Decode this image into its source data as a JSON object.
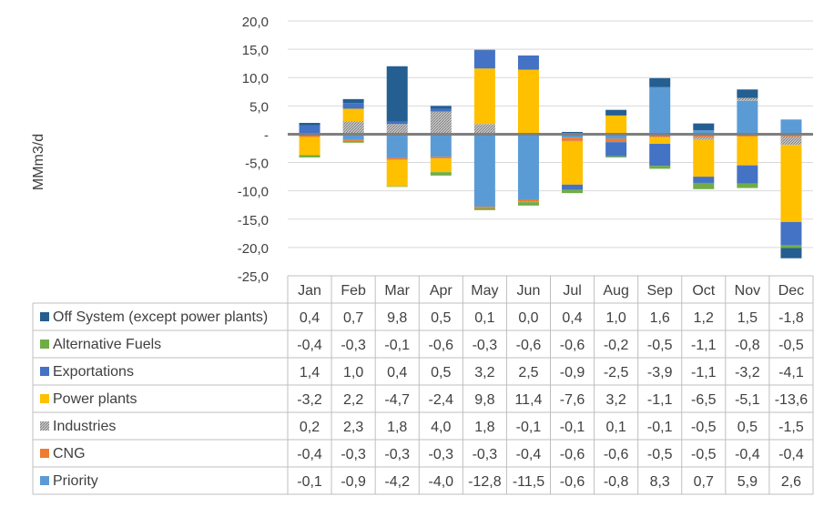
{
  "chart_data": {
    "type": "bar",
    "stacked": true,
    "ylabel": "MMm3/d",
    "ylim": [
      -25,
      20
    ],
    "yticks": [
      20,
      15,
      10,
      5,
      0,
      -5,
      -10,
      -15,
      -20,
      -25
    ],
    "ytick_labels": [
      "20,0",
      "15,0",
      "10,0",
      "5,0",
      "-",
      "-5,0",
      "-10,0",
      "-15,0",
      "-20,0",
      "-25,0"
    ],
    "grid": true,
    "legend": "data-table-below",
    "categories": [
      "Jan",
      "Feb",
      "Mar",
      "Apr",
      "May",
      "Jun",
      "Jul",
      "Aug",
      "Sep",
      "Oct",
      "Nov",
      "Dec"
    ],
    "series": [
      {
        "name": "Priority",
        "color": "#5b9bd5",
        "values": [
          -0.1,
          -0.9,
          -4.2,
          -4.0,
          -12.8,
          -11.5,
          -0.6,
          -0.8,
          8.3,
          0.7,
          5.9,
          2.6
        ],
        "labels": [
          "-0,1",
          "-0,9",
          "-4,2",
          "-4,0",
          "-12,8",
          "-11,5",
          "-0,6",
          "-0,8",
          "8,3",
          "0,7",
          "5,9",
          "2,6"
        ]
      },
      {
        "name": "CNG",
        "color": "#ed7d31",
        "values": [
          -0.4,
          -0.3,
          -0.3,
          -0.3,
          -0.3,
          -0.4,
          -0.6,
          -0.6,
          -0.5,
          -0.5,
          -0.4,
          -0.4
        ],
        "labels": [
          "-0,4",
          "-0,3",
          "-0,3",
          "-0,3",
          "-0,3",
          "-0,4",
          "-0,6",
          "-0,6",
          "-0,5",
          "-0,5",
          "-0,4",
          "-0,4"
        ]
      },
      {
        "name": "Industries",
        "color": "#a5a5a5",
        "pattern": true,
        "values": [
          0.2,
          2.3,
          1.8,
          4.0,
          1.8,
          -0.1,
          -0.1,
          0.1,
          -0.1,
          -0.5,
          0.5,
          -1.5
        ],
        "labels": [
          "0,2",
          "2,3",
          "1,8",
          "4,0",
          "1,8",
          "-0,1",
          "-0,1",
          "0,1",
          "-0,1",
          "-0,5",
          "0,5",
          "-1,5"
        ]
      },
      {
        "name": "Power plants",
        "color": "#ffc000",
        "values": [
          -3.2,
          2.2,
          -4.7,
          -2.4,
          9.8,
          11.4,
          -7.6,
          3.2,
          -1.1,
          -6.5,
          -5.1,
          -13.6
        ],
        "labels": [
          "-3,2",
          "2,2",
          "-4,7",
          "-2,4",
          "9,8",
          "11,4",
          "-7,6",
          "3,2",
          "-1,1",
          "-6,5",
          "-5,1",
          "-13,6"
        ]
      },
      {
        "name": "Exportations",
        "color": "#4472c4",
        "values": [
          1.4,
          1.0,
          0.4,
          0.5,
          3.2,
          2.5,
          -0.9,
          -2.5,
          -3.9,
          -1.1,
          -3.2,
          -4.1
        ],
        "labels": [
          "1,4",
          "1,0",
          "0,4",
          "0,5",
          "3,2",
          "2,5",
          "-0,9",
          "-2,5",
          "-3,9",
          "-1,1",
          "-3,2",
          "-4,1"
        ]
      },
      {
        "name": "Alternative Fuels",
        "color": "#70ad47",
        "values": [
          -0.4,
          -0.3,
          -0.1,
          -0.6,
          -0.3,
          -0.6,
          -0.6,
          -0.2,
          -0.5,
          -1.1,
          -0.8,
          -0.5
        ],
        "labels": [
          "-0,4",
          "-0,3",
          "-0,1",
          "-0,6",
          "-0,3",
          "-0,6",
          "-0,6",
          "-0,2",
          "-0,5",
          "-1,1",
          "-0,8",
          "-0,5"
        ]
      },
      {
        "name": "Off System (except power plants)",
        "color": "#255e91",
        "values": [
          0.4,
          0.7,
          9.8,
          0.5,
          0.1,
          0.0,
          0.4,
          1.0,
          1.6,
          1.2,
          1.5,
          -1.8
        ],
        "labels": [
          "0,4",
          "0,7",
          "9,8",
          "0,5",
          "0,1",
          "0,0",
          "0,4",
          "1,0",
          "1,6",
          "1,2",
          "1,5",
          "-1,8"
        ]
      }
    ],
    "table_row_order": [
      "Off System (except power plants)",
      "Alternative Fuels",
      "Exportations",
      "Power plants",
      "Industries",
      "CNG",
      "Priority"
    ]
  }
}
